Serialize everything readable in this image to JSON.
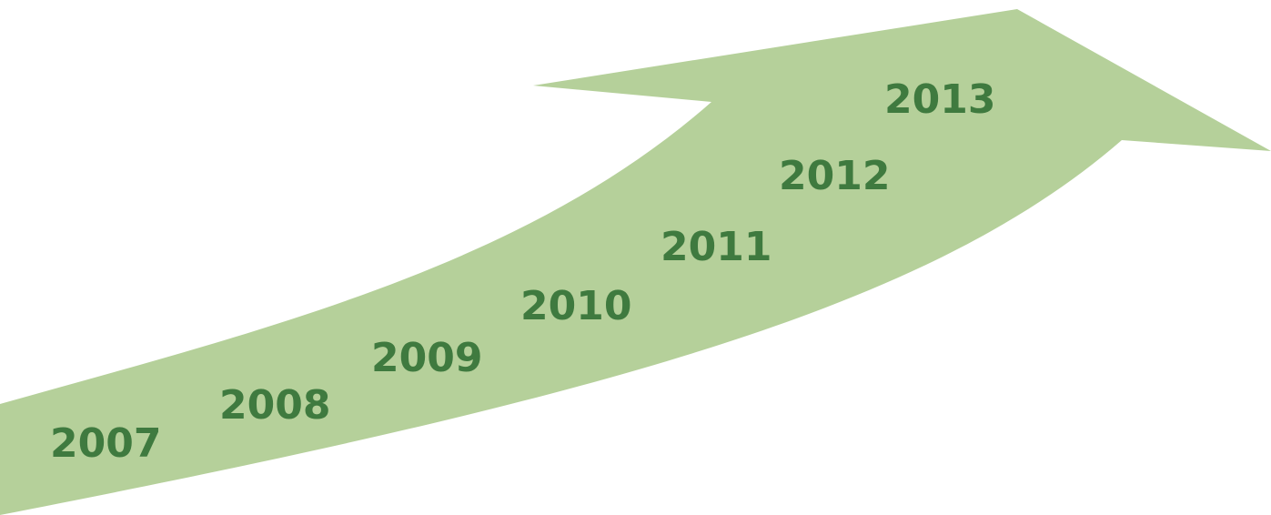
{
  "timeline": {
    "years": [
      "2007",
      "2008",
      "2009",
      "2010",
      "2011",
      "2012",
      "2013"
    ]
  },
  "colors": {
    "arrow_fill": "#b5d09a",
    "year_text": "#3f7a3f",
    "background": "#ffffff"
  },
  "icons": {
    "arrow": "curved-up-arrow"
  }
}
